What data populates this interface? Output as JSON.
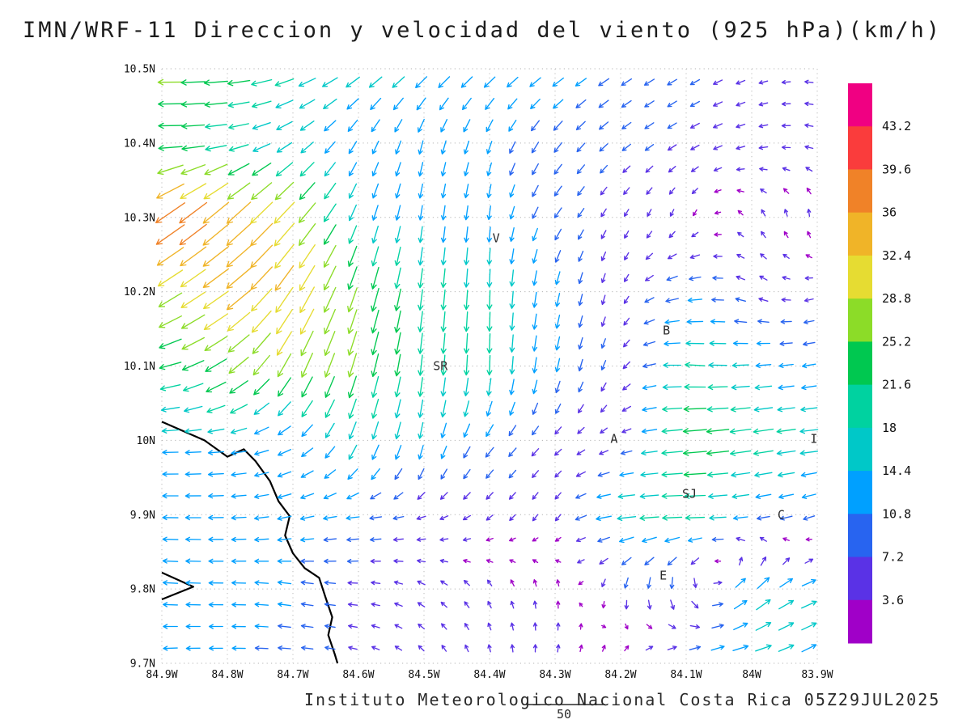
{
  "title": "IMN/WRF-11 Direccion y velocidad del viento (925 hPa)(km/h)",
  "attribution": "Instituto Meteorologico Nacional Costa Rica 05Z29JUL2025",
  "reference_vector": {
    "label": "50"
  },
  "chart_data": {
    "type": "vector_field",
    "title": "IMN/WRF-11 Direccion y velocidad del viento (925 hPa)(km/h)",
    "units": "km/h",
    "level": "925 hPa",
    "x_axis": {
      "range": [
        -84.9,
        -83.9
      ],
      "values": [
        -84.9,
        -84.8,
        -84.7,
        -84.6,
        -84.5,
        -84.4,
        -84.3,
        -84.2,
        -84.1,
        -84.0,
        -83.9
      ],
      "labels": [
        "84.9W",
        "84.8W",
        "84.7W",
        "84.6W",
        "84.5W",
        "84.4W",
        "84.3W",
        "84.2W",
        "84.1W",
        "84W",
        "83.9W"
      ]
    },
    "y_axis": {
      "range": [
        9.7,
        10.5
      ],
      "values": [
        9.7,
        9.8,
        9.9,
        10.0,
        10.1,
        10.2,
        10.3,
        10.4,
        10.5
      ],
      "labels": [
        "9.7N",
        "9.8N",
        "9.9N",
        "10N",
        "10.1N",
        "10.2N",
        "10.3N",
        "10.4N",
        "10.5N"
      ]
    },
    "grid": "dotted",
    "colorbar": {
      "position": "right",
      "levels": [
        3.6,
        7.2,
        10.8,
        14.4,
        18,
        21.6,
        25.2,
        28.8,
        32.4,
        36,
        39.6,
        43.2
      ],
      "labels": [
        "3.6",
        "7.2",
        "10.8",
        "14.4",
        "18",
        "21.6",
        "25.2",
        "28.8",
        "32.4",
        "36",
        "39.6",
        "43.2"
      ],
      "colors": [
        "#a000c8",
        "#5a32e6",
        "#2864f0",
        "#00a0ff",
        "#00c8c8",
        "#00d2a0",
        "#00c850",
        "#8cdc28",
        "#e6dc32",
        "#f0b428",
        "#f08228",
        "#fa3c3c",
        "#f00082"
      ]
    },
    "stations": [
      {
        "label": "V",
        "lon": -84.39,
        "lat": 10.272
      },
      {
        "label": "B",
        "lon": -84.13,
        "lat": 10.148
      },
      {
        "label": "SR",
        "lon": -84.475,
        "lat": 10.1
      },
      {
        "label": "A",
        "lon": -84.21,
        "lat": 10.002
      },
      {
        "label": "I",
        "lon": -83.905,
        "lat": 10.002
      },
      {
        "label": "SJ",
        "lon": -84.095,
        "lat": 9.928
      },
      {
        "label": "C",
        "lon": -83.955,
        "lat": 9.9
      },
      {
        "label": "E",
        "lon": -84.135,
        "lat": 9.818
      }
    ],
    "coastline_lonlat": [
      [
        [
          -84.9,
          10.025
        ],
        [
          -84.835,
          10.0
        ],
        [
          -84.8,
          9.978
        ],
        [
          -84.775,
          9.988
        ],
        [
          -84.757,
          9.972
        ],
        [
          -84.735,
          9.945
        ],
        [
          -84.722,
          9.918
        ],
        [
          -84.705,
          9.898
        ],
        [
          -84.712,
          9.872
        ],
        [
          -84.7,
          9.848
        ],
        [
          -84.682,
          9.828
        ],
        [
          -84.66,
          9.815
        ],
        [
          -84.65,
          9.788
        ],
        [
          -84.64,
          9.762
        ],
        [
          -84.646,
          9.738
        ],
        [
          -84.636,
          9.712
        ],
        [
          -84.632,
          9.7
        ]
      ],
      [
        [
          -84.9,
          9.822
        ],
        [
          -84.852,
          9.803
        ],
        [
          -84.9,
          9.786
        ]
      ]
    ],
    "wind_grid": {
      "comment_convention": "dir_deg = direction arrow points toward, 0=east, 90=north; speed in km/h; rows ordered lats top-to-bottom",
      "lons": [
        -84.9,
        -84.8,
        -84.7,
        -84.6,
        -84.5,
        -84.4,
        -84.3,
        -84.2,
        -84.1,
        -84.0,
        -83.9
      ],
      "lats": [
        10.5,
        10.4,
        10.3,
        10.2,
        10.1,
        10.0,
        9.9,
        9.8,
        9.7
      ],
      "dir_deg": [
        [
          180,
          185,
          200,
          215,
          220,
          220,
          215,
          212,
          210,
          200,
          170
        ],
        [
          180,
          190,
          215,
          240,
          255,
          250,
          232,
          218,
          210,
          195,
          165
        ],
        [
          215,
          222,
          228,
          250,
          262,
          263,
          235,
          240,
          250,
          120,
          90
        ],
        [
          212,
          216,
          238,
          252,
          263,
          268,
          258,
          250,
          190,
          150,
          200
        ],
        [
          192,
          214,
          244,
          254,
          264,
          268,
          258,
          240,
          176,
          184,
          190
        ],
        [
          181,
          186,
          210,
          250,
          258,
          232,
          222,
          205,
          185,
          189,
          186
        ],
        [
          179,
          181,
          194,
          186,
          200,
          220,
          238,
          186,
          180,
          190,
          199
        ],
        [
          176,
          180,
          170,
          178,
          150,
          120,
          95,
          262,
          278,
          45,
          20
        ],
        [
          184,
          180,
          176,
          160,
          130,
          100,
          80,
          70,
          30,
          10,
          30
        ]
      ],
      "speed": [
        [
          26,
          24,
          19,
          16,
          15,
          14,
          12,
          10,
          8,
          6,
          5
        ],
        [
          24,
          20,
          15,
          12,
          12,
          11,
          10,
          8,
          7,
          6,
          5
        ],
        [
          40,
          36,
          31,
          15,
          13,
          12,
          10,
          5,
          4,
          4,
          4
        ],
        [
          28,
          34,
          33,
          26,
          20,
          18,
          12,
          5,
          12,
          6,
          5
        ],
        [
          22,
          26,
          28,
          25,
          20,
          19,
          12,
          6,
          20,
          14,
          11
        ],
        [
          14,
          14,
          12,
          17,
          14,
          11,
          6,
          5,
          25,
          21,
          17
        ],
        [
          14,
          13,
          12,
          11,
          6,
          5,
          5,
          18,
          20,
          12,
          10
        ],
        [
          13,
          12,
          11,
          6,
          5,
          4,
          4,
          8,
          10,
          17,
          15
        ],
        [
          12,
          11,
          10,
          5,
          4,
          4,
          4,
          5,
          10,
          16,
          14
        ]
      ]
    }
  }
}
